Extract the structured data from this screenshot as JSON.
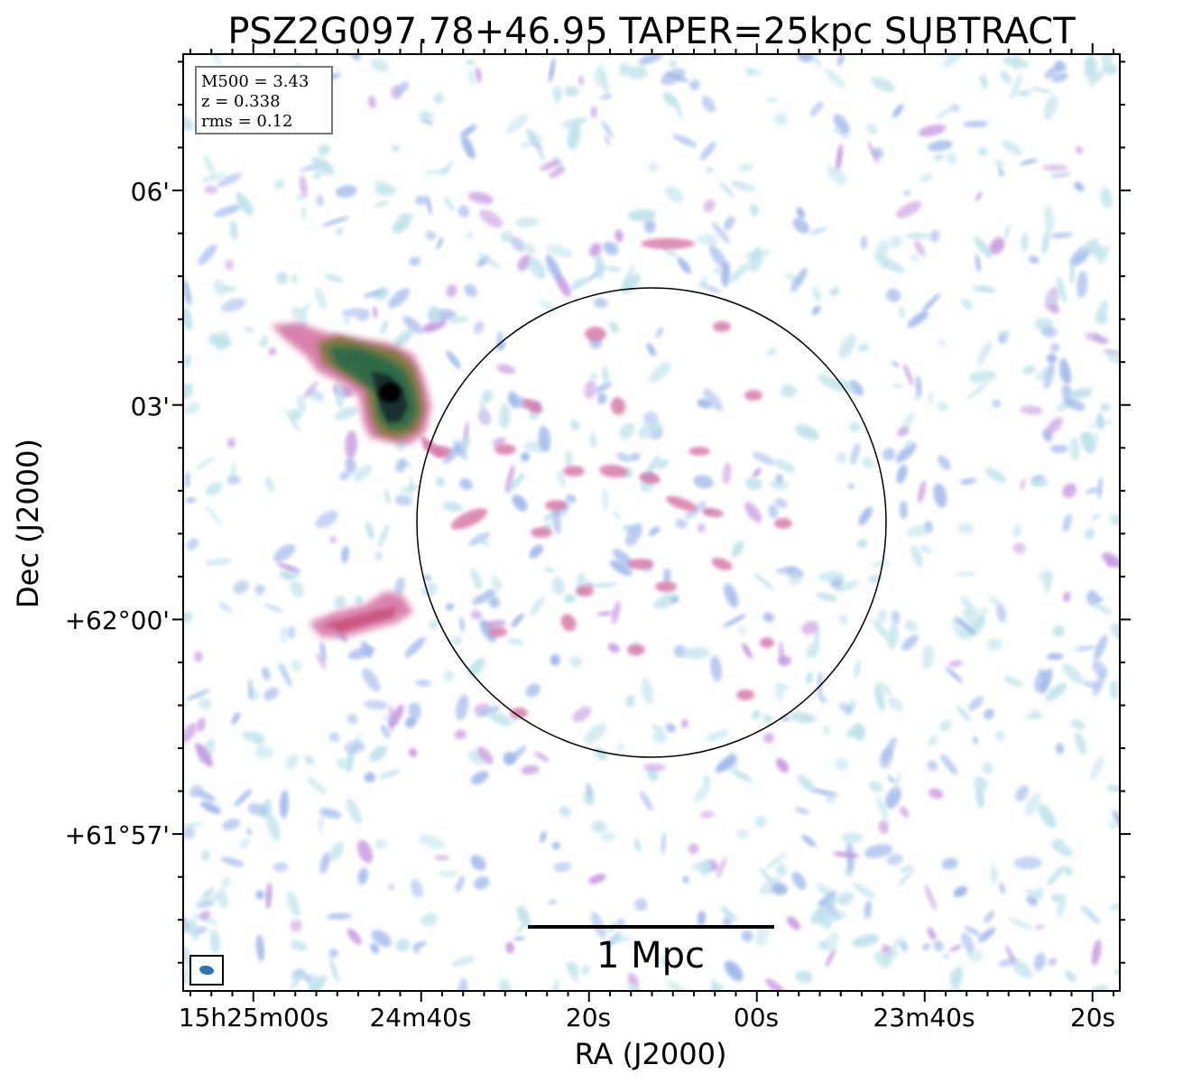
{
  "title": "PSZ2G097.78+46.95 TAPER=25kpc SUBTRACT",
  "info": {
    "m500": "M500 = 3.43",
    "z": "z = 0.338",
    "rms": "rms = 0.12"
  },
  "axes": {
    "xlabel": "RA (J2000)",
    "ylabel": "Dec (J2000)",
    "xticks": [
      "15h25m00s",
      "24m40s",
      "20s",
      "00s",
      "23m40s",
      "20s"
    ],
    "yticks": [
      "06'",
      "03'",
      "+62°00'",
      "+61°57'"
    ]
  },
  "scalebar": {
    "label": "1 Mpc"
  },
  "colors": {
    "noise_light": "#bfe3ea",
    "noise_blue": "#9fb8ea",
    "noise_purple": "#c79be0",
    "emission_pink": "#d77aa8",
    "emission_red": "#c9557e",
    "emission_olive": "#7b7a3a",
    "emission_green": "#2f6b46",
    "emission_dark": "#142a2e",
    "circle": "#000000"
  },
  "overlays": {
    "circle": "cluster-region",
    "beam": "beam-ellipse"
  }
}
